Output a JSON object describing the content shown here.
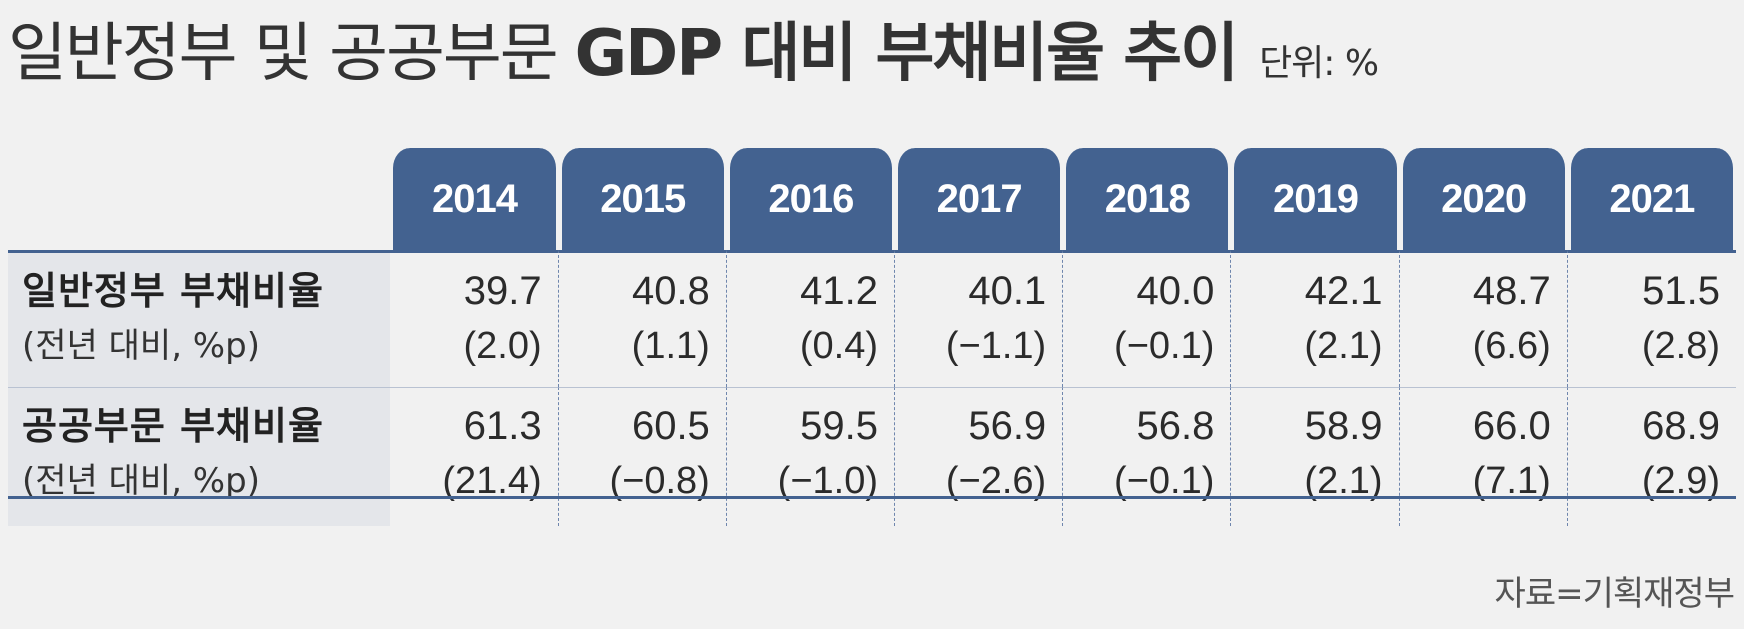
{
  "title": {
    "light": "일반정부 및 공공부문",
    "bold": "GDP 대비 부채비율 추이",
    "unit": "단위: %"
  },
  "table": {
    "years": [
      "2014",
      "2015",
      "2016",
      "2017",
      "2018",
      "2019",
      "2020",
      "2021"
    ],
    "rows": [
      {
        "label": "일반정부 부채비율",
        "sublabel": "(전년 대비, %p)",
        "values": [
          "39.7",
          "40.8",
          "41.2",
          "40.1",
          "40.0",
          "42.1",
          "48.7",
          "51.5"
        ],
        "changes": [
          "(2.0)",
          "(1.1)",
          "(0.4)",
          "(−1.1)",
          "(−0.1)",
          "(2.1)",
          "(6.6)",
          "(2.8)"
        ]
      },
      {
        "label": "공공부문 부채비율",
        "sublabel": "(전년 대비, %p)",
        "values": [
          "61.3",
          "60.5",
          "59.5",
          "56.9",
          "56.8",
          "58.9",
          "66.0",
          "68.9"
        ],
        "changes": [
          "(21.4)",
          "(−0.8)",
          "(−1.0)",
          "(−2.6)",
          "(−0.1)",
          "(2.1)",
          "(7.1)",
          "(2.9)"
        ]
      }
    ]
  },
  "source": "자료=기획재정부",
  "colors": {
    "header_bg": "#436290",
    "label_bg": "#e4e6ea",
    "page_bg": "#f1f1f1"
  }
}
